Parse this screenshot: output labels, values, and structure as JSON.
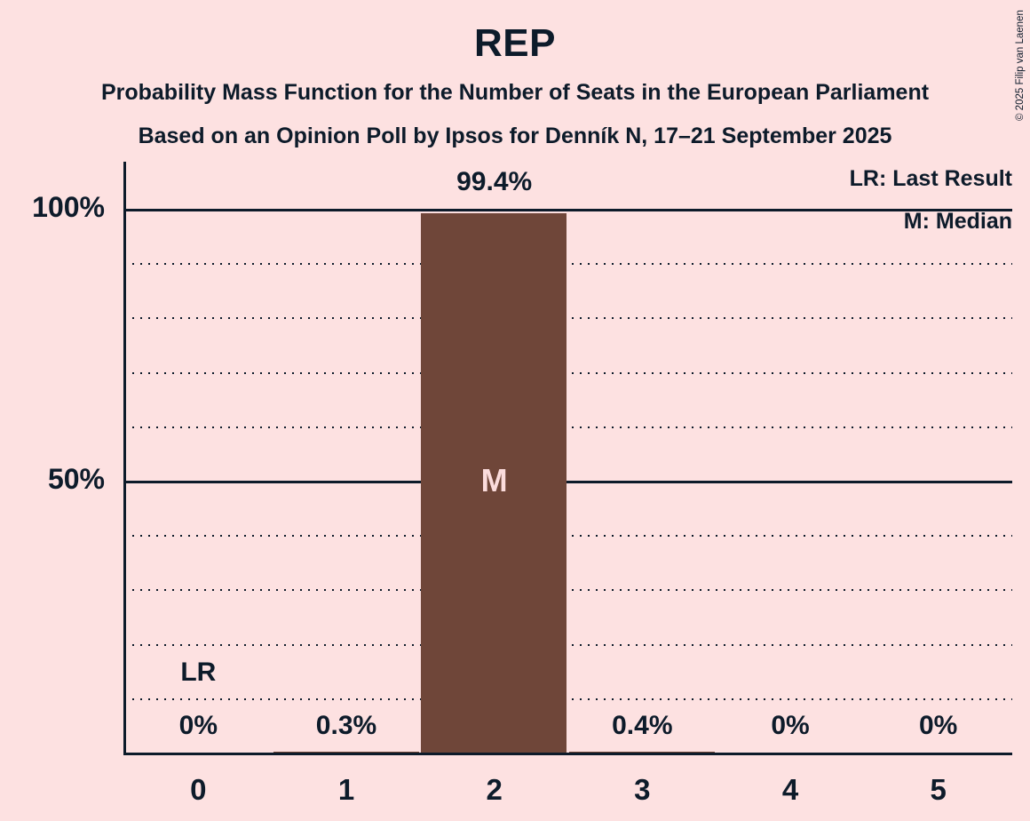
{
  "title": "REP",
  "subtitles": [
    "Probability Mass Function for the Number of Seats in the European Parliament",
    "Based on an Opinion Poll by Ipsos for Denník N, 17–21 September 2025"
  ],
  "copyright": "© 2025 Filip van Laenen",
  "legend": {
    "lr": "LR: Last Result",
    "m": "M: Median"
  },
  "colors": {
    "background": "#fde1e1",
    "text": "#0d1b2a",
    "bar": "#6f4639",
    "bar_label": "#fbdcdc"
  },
  "chart_data": {
    "type": "bar",
    "title": "REP",
    "categories": [
      "0",
      "1",
      "2",
      "3",
      "4",
      "5"
    ],
    "values": [
      0,
      0.3,
      99.4,
      0.4,
      0,
      0
    ],
    "value_labels": [
      "0%",
      "0.3%",
      "99.4%",
      "0.4%",
      "0%",
      "0%"
    ],
    "ylim": [
      0,
      100
    ],
    "y_ticks": [
      {
        "label": "100%",
        "value": 100
      },
      {
        "label": "50%",
        "value": 50
      }
    ],
    "gridlines": {
      "solid": [
        100,
        50
      ],
      "dotted": [
        90,
        80,
        70,
        60,
        40,
        30,
        20,
        10
      ]
    },
    "median": {
      "category_index": 2,
      "marker": "M"
    },
    "last_result": {
      "category_index": 0,
      "marker": "LR"
    },
    "legend_entries": [
      "LR: Last Result",
      "M: Median"
    ]
  }
}
